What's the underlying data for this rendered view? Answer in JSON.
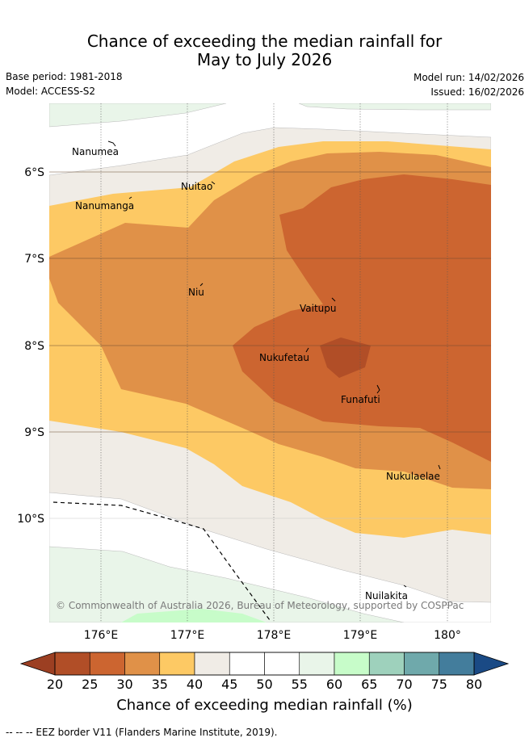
{
  "title": {
    "line1": "Chance of exceeding the median rainfall for",
    "line2": "May to July 2026"
  },
  "meta": {
    "base_period": "Base period: 1981-2018",
    "model": "Model: ACCESS-S2",
    "model_run": "Model run: 14/02/2026",
    "issued": "Issued: 16/02/2026"
  },
  "map": {
    "longitude_ticks": [
      "176°E",
      "177°E",
      "178°E",
      "179°E",
      "180°"
    ],
    "latitude_ticks": [
      "6°S",
      "7°S",
      "8°S",
      "9°S",
      "10°S"
    ],
    "places": [
      "Nanumea",
      "Nuitao",
      "Nanumanga",
      "Niu",
      "Vaitupu",
      "Nukufetau",
      "Funafuti",
      "Nukulaelae",
      "Nuilakita"
    ],
    "copyright": "© Commonwealth of Australia 2026, Bureau of Meteorology, supported by COSPPac"
  },
  "colorbar": {
    "tick_labels": [
      "20",
      "25",
      "30",
      "35",
      "40",
      "45",
      "50",
      "55",
      "60",
      "65",
      "70",
      "75",
      "80"
    ],
    "colors": [
      "#b14e27",
      "#cc6530",
      "#e09148",
      "#fdc964",
      "#f0ece6",
      "#ffffff",
      "#ffffff",
      "#e9f5e9",
      "#c7fcc9",
      "#9ed1bc",
      "#6fa9ab",
      "#437d9c"
    ],
    "under_color": "#9c3f22",
    "over_color": "#1a4a85",
    "title": "Chance of exceeding median rainfall (%)"
  },
  "legend": {
    "eez": "--  --  -- EEZ border V11 (Flanders Marine Institute, 2019)."
  }
}
